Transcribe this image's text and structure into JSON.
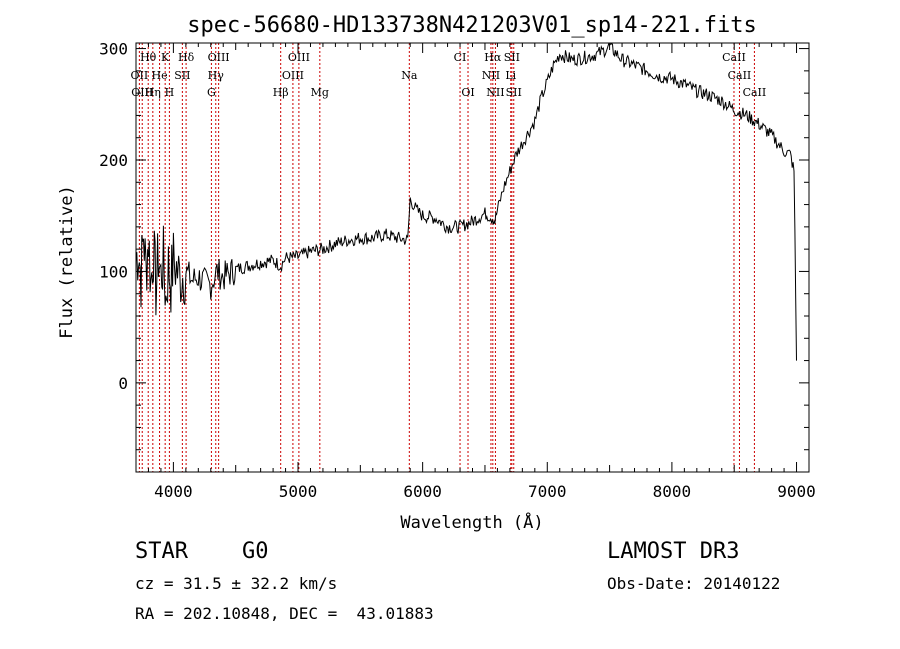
{
  "chart_data": {
    "type": "line",
    "title": "spec-56680-HD133738N421203V01_sp14-221.fits",
    "xlabel": "Wavelength (Å)",
    "ylabel": "Flux (relative)",
    "xlim": [
      3700,
      9100
    ],
    "ylim": [
      -80,
      305
    ],
    "x_ticks": [
      4000,
      5000,
      6000,
      7000,
      8000,
      9000
    ],
    "y_ticks": [
      0,
      100,
      200,
      300
    ],
    "series": [
      {
        "name": "spectrum",
        "x": [
          3700,
          3720,
          3740,
          3760,
          3780,
          3800,
          3820,
          3840,
          3860,
          3880,
          3900,
          3920,
          3940,
          3960,
          3980,
          4000,
          4050,
          4100,
          4150,
          4200,
          4250,
          4300,
          4350,
          4400,
          4500,
          4600,
          4700,
          4800,
          4860,
          4900,
          5000,
          5100,
          5200,
          5300,
          5400,
          5500,
          5600,
          5700,
          5800,
          5880,
          5900,
          5950,
          6000,
          6100,
          6200,
          6300,
          6400,
          6500,
          6560,
          6580,
          6600,
          6650,
          6700,
          6750,
          6800,
          6850,
          6900,
          6950,
          7000,
          7050,
          7100,
          7200,
          7300,
          7400,
          7450,
          7500,
          7600,
          7700,
          7800,
          7900,
          8000,
          8100,
          8200,
          8300,
          8400,
          8500,
          8600,
          8700,
          8800,
          8850,
          8900,
          8950,
          8980,
          9000
        ],
        "y": [
          110,
          120,
          95,
          135,
          100,
          130,
          90,
          120,
          85,
          115,
          95,
          110,
          75,
          105,
          90,
          110,
          95,
          100,
          92,
          95,
          90,
          88,
          100,
          95,
          102,
          105,
          108,
          110,
          105,
          112,
          113,
          118,
          120,
          125,
          128,
          130,
          130,
          133,
          130,
          128,
          165,
          155,
          150,
          148,
          140,
          140,
          145,
          152,
          148,
          145,
          155,
          175,
          190,
          205,
          215,
          225,
          235,
          255,
          270,
          285,
          295,
          290,
          292,
          295,
          298,
          302,
          290,
          285,
          280,
          275,
          273,
          268,
          262,
          258,
          253,
          245,
          240,
          232,
          222,
          215,
          208,
          205,
          190,
          20
        ]
      }
    ],
    "line_labels": [
      {
        "label": "Hθ",
        "x": 3798,
        "row": 0
      },
      {
        "label": "K",
        "x": 3934,
        "row": 0
      },
      {
        "label": "Hδ",
        "x": 4102,
        "row": 0
      },
      {
        "label": "OIII",
        "x": 4363,
        "row": 0
      },
      {
        "label": "OIII",
        "x": 5007,
        "row": 0
      },
      {
        "label": "CI",
        "x": 6300,
        "row": 0
      },
      {
        "label": "Hα",
        "x": 6563,
        "row": 0
      },
      {
        "label": "SII",
        "x": 6716,
        "row": 0
      },
      {
        "label": "CaII",
        "x": 8498,
        "row": 0
      },
      {
        "label": "OII",
        "x": 3727,
        "row": 1
      },
      {
        "label": "He",
        "x": 3889,
        "row": 1
      },
      {
        "label": "SII",
        "x": 4072,
        "row": 1
      },
      {
        "label": "Hγ",
        "x": 4340,
        "row": 1
      },
      {
        "label": "OIII",
        "x": 4959,
        "row": 1
      },
      {
        "label": "Na",
        "x": 5893,
        "row": 1
      },
      {
        "label": "NII",
        "x": 6548,
        "row": 1
      },
      {
        "label": "Li",
        "x": 6707,
        "row": 1
      },
      {
        "label": "CaII",
        "x": 8542,
        "row": 1
      },
      {
        "label": "OIII",
        "x": 3750,
        "row": 2
      },
      {
        "label": "Hη",
        "x": 3835,
        "row": 2
      },
      {
        "label": "H",
        "x": 3968,
        "row": 2
      },
      {
        "label": "G",
        "x": 4305,
        "row": 2
      },
      {
        "label": "Hβ",
        "x": 4861,
        "row": 2
      },
      {
        "label": "Mg",
        "x": 5175,
        "row": 2
      },
      {
        "label": "OI",
        "x": 6364,
        "row": 2
      },
      {
        "label": "NII",
        "x": 6584,
        "row": 2
      },
      {
        "label": "SII",
        "x": 6731,
        "row": 2
      },
      {
        "label": "CaII",
        "x": 8662,
        "row": 2
      }
    ]
  },
  "info": {
    "class_label": "STAR",
    "subclass": "G0",
    "survey": "LAMOST DR3",
    "cz": "cz = 31.5 ± 32.2 km/s",
    "obs_date": "Obs-Date: 20140122",
    "coords": "RA = 202.10848, DEC =  43.01883"
  },
  "colors": {
    "spectrum": "#000000",
    "line_markers": "#cc0000"
  }
}
